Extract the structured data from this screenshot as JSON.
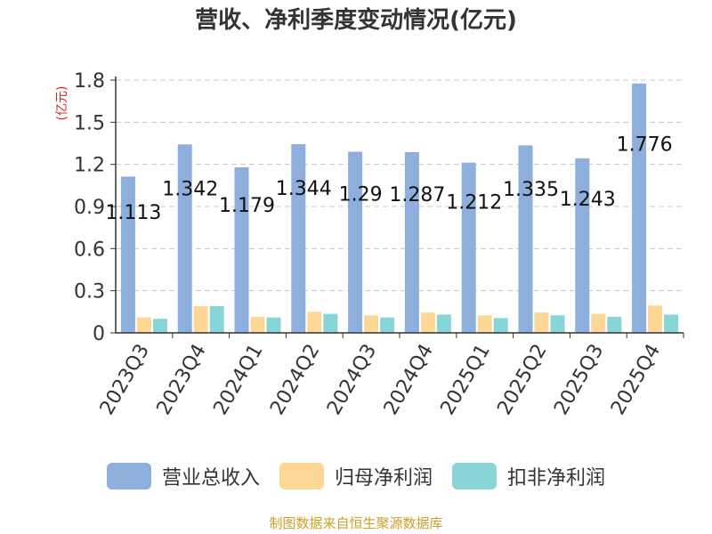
{
  "chart_data": {
    "type": "bar",
    "title": "营收、净利季度变动情况(亿元)",
    "ylabel": "(亿元)",
    "ylim": [
      0,
      1.8
    ],
    "yticks": [
      "0",
      "0.3",
      "0.6",
      "0.9",
      "1.2",
      "1.5",
      "1.8"
    ],
    "grid": true,
    "legend_position": "bottom",
    "categories": [
      "2023Q3",
      "2023Q4",
      "2024Q1",
      "2024Q2",
      "2024Q3",
      "2024Q4",
      "2025Q1",
      "2025Q2",
      "2025Q3",
      "2025Q4"
    ],
    "series": [
      {
        "name": "营业总收入",
        "color": "#8eaedc",
        "values": [
          1.113,
          1.342,
          1.179,
          1.344,
          1.29,
          1.287,
          1.212,
          1.335,
          1.243,
          1.776
        ],
        "labels": [
          "1.113",
          "1.342",
          "1.179",
          "1.344",
          "1.29",
          "1.287",
          "1.212",
          "1.335",
          "1.243",
          "1.776"
        ]
      },
      {
        "name": "归母净利润",
        "color": "#fdd795",
        "values": [
          0.11,
          0.19,
          0.115,
          0.15,
          0.125,
          0.145,
          0.125,
          0.145,
          0.135,
          0.195
        ]
      },
      {
        "name": "扣非净利润",
        "color": "#88d5d8",
        "values": [
          0.1,
          0.19,
          0.11,
          0.135,
          0.11,
          0.13,
          0.105,
          0.125,
          0.115,
          0.13
        ]
      }
    ]
  },
  "source": "制图数据来自恒生聚源数据库"
}
